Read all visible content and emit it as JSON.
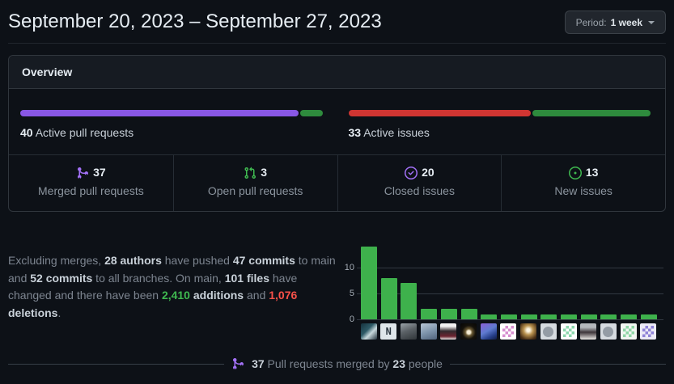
{
  "header": {
    "title": "September 20, 2023 – September 27, 2023",
    "period_button": {
      "prefix": "Period:",
      "value": "1 week"
    }
  },
  "overview": {
    "title": "Overview",
    "pull_requests_bar": {
      "count": "40",
      "text": "Active pull requests",
      "segments": [
        {
          "name": "merged",
          "color": "#8957e5",
          "pct": 92.5
        },
        {
          "name": "open",
          "color": "#2e8b3d",
          "pct": 7.5
        }
      ]
    },
    "issues_bar": {
      "count": "33",
      "text": "Active issues",
      "segments": [
        {
          "name": "closed",
          "color": "#d03532",
          "pct": 60.6
        },
        {
          "name": "new",
          "color": "#2e8b3d",
          "pct": 39.4
        }
      ]
    },
    "stats": [
      {
        "icon": "git-merge-icon",
        "color": "#a371f7",
        "count": "37",
        "label": "Merged pull requests"
      },
      {
        "icon": "git-pull-request-icon",
        "color": "#3fb950",
        "count": "3",
        "label": "Open pull requests"
      },
      {
        "icon": "issue-closed-icon",
        "color": "#a371f7",
        "count": "20",
        "label": "Closed issues"
      },
      {
        "icon": "issue-opened-icon",
        "color": "#3fb950",
        "count": "13",
        "label": "New issues"
      }
    ]
  },
  "summary": {
    "segments": [
      {
        "t": "Excluding merges, "
      },
      {
        "t": "28 authors",
        "b": true
      },
      {
        "t": " have pushed "
      },
      {
        "t": "47 commits",
        "b": true
      },
      {
        "t": " to main and "
      },
      {
        "t": "52 commits",
        "b": true
      },
      {
        "t": " to all branches. On main, "
      },
      {
        "t": "101 files",
        "b": true
      },
      {
        "t": " have changed and there have been "
      },
      {
        "t": "2,410",
        "b": true,
        "color": "#3fb950"
      },
      {
        "t": " "
      },
      {
        "t": "additions",
        "b": true
      },
      {
        "t": " and "
      },
      {
        "t": "1,076",
        "b": true,
        "color": "#f85149"
      },
      {
        "t": " "
      },
      {
        "t": "deletions",
        "b": true
      },
      {
        "t": "."
      }
    ]
  },
  "chart_data": {
    "type": "bar",
    "title": "",
    "xlabel": "",
    "ylabel": "",
    "x_categories": "contributor avatars",
    "values": [
      14,
      8,
      7,
      2,
      2,
      2,
      1,
      1,
      1,
      1,
      1,
      1,
      1,
      1,
      1
    ],
    "yticks": [
      0,
      5,
      10
    ],
    "ylim": [
      0,
      14.5
    ],
    "grid": true,
    "legend": "none",
    "bar_color": "#3eb14c",
    "avatars": [
      {
        "kind": "photo",
        "desc": "person-teal-photo",
        "bg": "linear-gradient(135deg,#16323e 0%,#2e5a66 40%,#c8d8dc 62%,#24333d 100%)"
      },
      {
        "kind": "letter",
        "desc": "n-logo",
        "bg": "#dfe6ea",
        "fg": "#2b3640",
        "text": "N"
      },
      {
        "kind": "photo",
        "desc": "grayscale-portrait",
        "bg": "linear-gradient(160deg,#9aa2a8 0%,#5b6166 45%,#31363a 100%)"
      },
      {
        "kind": "photo",
        "desc": "hooded-portrait",
        "bg": "linear-gradient(160deg,#b9c6d6 0%,#8096ad 50%,#51647d 100%)"
      },
      {
        "kind": "photo",
        "desc": "portrait-white-frame",
        "bg": "linear-gradient(180deg,#f2f2f2 0%,#f2f2f2 18%,#332a2e 48%,#6d2430 80%,#e8e8e8 100%)"
      },
      {
        "kind": "photo",
        "desc": "night-moon-photo",
        "bg": "radial-gradient(circle at 52% 55%,#f5ecd3 0%,#f5ecd3 14%,#6b5a33 28%,#15120b 55%,#060606 100%)"
      },
      {
        "kind": "photo",
        "desc": "colorful-hat-portrait",
        "bg": "linear-gradient(150deg,#8a5fd6 0%,#5f7bd0 45%,#27408b 75%,#111c45 100%)"
      },
      {
        "kind": "identicon",
        "desc": "pink-identicon",
        "bg": "#ffffff",
        "fg": "#d78fd0"
      },
      {
        "kind": "photo",
        "desc": "warm-light-portrait",
        "bg": "radial-gradient(circle at 50% 42%,#fdf6e3 0%,#fdf6e3 12%,#b9924f 38%,#4a3016 78%,#241506 100%)"
      },
      {
        "kind": "octocat",
        "desc": "default-octocat-avatar",
        "bg": "#d6dbe0",
        "fg": "#949ca5"
      },
      {
        "kind": "identicon",
        "desc": "mint-identicon",
        "bg": "#ffffff",
        "fg": "#8cd7ad"
      },
      {
        "kind": "photo",
        "desc": "portrait-gray-bg",
        "bg": "linear-gradient(180deg,#b4b8bc 0%,#b4b8bc 25%,#3d3539 55%,#ece9e6 100%)"
      },
      {
        "kind": "octocat",
        "desc": "default-octocat-avatar",
        "bg": "#d6dbe0",
        "fg": "#949ca5"
      },
      {
        "kind": "identicon",
        "desc": "mint-identicon-2",
        "bg": "#f2f6f2",
        "fg": "#8fd6a6"
      },
      {
        "kind": "identicon",
        "desc": "purple-identicon",
        "bg": "#eceaf6",
        "fg": "#8f83d8"
      }
    ]
  },
  "footer": {
    "segments": [
      {
        "t": "37",
        "b": true
      },
      {
        "t": " Pull requests merged by "
      },
      {
        "t": "23",
        "b": true
      },
      {
        "t": " people"
      }
    ]
  },
  "colors": {
    "page_bg": "#0d1117",
    "panel_header_bg": "#161b22",
    "border": "#30363d",
    "text_primary": "#e6edf3",
    "text_body": "#c9d1d9",
    "text_muted": "#8b949e",
    "purple_icon": "#a371f7",
    "purple_bar": "#8957e5",
    "green_icon": "#3fb950",
    "green_bar": "#2e8b3d",
    "red_bar": "#d03532",
    "chart_bar_green": "#3eb14c",
    "additions_green": "#3fb950",
    "deletions_red": "#f85149"
  }
}
